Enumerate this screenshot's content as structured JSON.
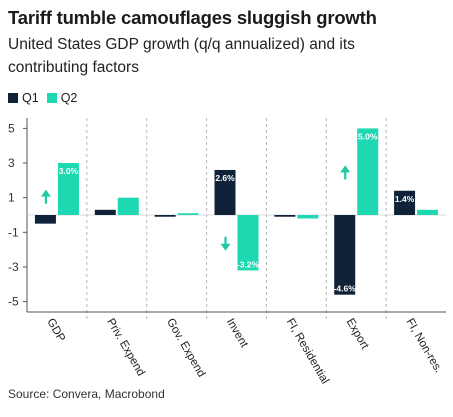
{
  "header": {
    "title": "Tariff tumble camouflages sluggish growth",
    "subtitle": "United States GDP growth (q/q annualized) and its contributing factors"
  },
  "footer": {
    "source": "Source: Convera, Macrobond"
  },
  "colors": {
    "q1": "#0f2237",
    "q2": "#1dd8b0",
    "arrow": "#1fcaa6",
    "grid": "#b5b5b5",
    "axis": "#555555"
  },
  "chart_data": {
    "type": "bar",
    "title": "Tariff tumble camouflages sluggish growth",
    "subtitle": "United States GDP growth (q/q annualized) and its contributing factors",
    "categories": [
      "GDP",
      "Priv. Expend",
      "Gov. Expend",
      "Invent",
      "FI, Residential",
      "Export",
      "FI, Non-res."
    ],
    "series": [
      {
        "name": "Q1",
        "values": [
          -0.5,
          0.3,
          -0.1,
          2.6,
          -0.1,
          -4.6,
          1.4
        ],
        "data_labels": [
          "-0.5%",
          "0.3%",
          "",
          "2.6%",
          "",
          "-4.6%",
          "1.4%"
        ]
      },
      {
        "name": "Q2",
        "values": [
          3.0,
          1.0,
          0.1,
          -3.2,
          -0.2,
          5.0,
          0.3
        ],
        "data_labels": [
          "3.0%",
          "1.0%",
          "",
          "-3.2%",
          "",
          "5.0%",
          ""
        ]
      }
    ],
    "ylim": [
      -5.6,
      5.6
    ],
    "yticks": [
      5,
      3,
      1,
      -1,
      -3,
      -5
    ],
    "grid": true,
    "legend": "top-left",
    "annotations": [
      {
        "category": "GDP",
        "arrow": "up"
      },
      {
        "category": "Invent",
        "arrow": "down"
      },
      {
        "category": "Export",
        "arrow": "up"
      }
    ],
    "xlabel": "",
    "ylabel": ""
  }
}
